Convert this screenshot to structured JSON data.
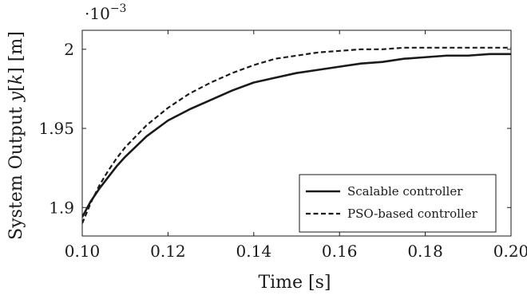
{
  "chart_data": {
    "type": "line",
    "xlabel": "Time [s]",
    "ylabel": "System Output y[k] [m]",
    "ylabel_parts": {
      "prefix": "System Output ",
      "var": "y",
      "arg": "k",
      "unit": " [m]"
    },
    "y_scale_factor": "·10",
    "y_scale_exponent": "−3",
    "xlim": [
      0.1,
      0.2
    ],
    "ylim": [
      1.882,
      2.012
    ],
    "x_ticks": [
      0.1,
      0.12,
      0.14,
      0.16,
      0.18,
      0.2
    ],
    "x_tick_labels": [
      "0.10",
      "0.12",
      "0.14",
      "0.16",
      "0.18",
      "0.20"
    ],
    "y_ticks": [
      1.9,
      1.95,
      2.0
    ],
    "y_tick_labels": [
      "1.9",
      "1.95",
      "2"
    ],
    "grid": false,
    "legend_position": "bottom-right",
    "series": [
      {
        "name": "Scalable controller",
        "style": "solid",
        "color": "#1a1a1a",
        "x": [
          0.1,
          0.102,
          0.104,
          0.106,
          0.108,
          0.11,
          0.115,
          0.12,
          0.125,
          0.13,
          0.135,
          0.14,
          0.145,
          0.15,
          0.155,
          0.16,
          0.165,
          0.17,
          0.175,
          0.18,
          0.185,
          0.19,
          0.195,
          0.2
        ],
        "y": [
          1.894,
          1.904,
          1.912,
          1.919,
          1.926,
          1.932,
          1.945,
          1.955,
          1.962,
          1.968,
          1.974,
          1.979,
          1.982,
          1.985,
          1.987,
          1.989,
          1.991,
          1.992,
          1.994,
          1.995,
          1.996,
          1.996,
          1.997,
          1.997
        ]
      },
      {
        "name": "PSO-based controller",
        "style": "dashed",
        "color": "#1a1a1a",
        "x": [
          0.1,
          0.102,
          0.104,
          0.106,
          0.108,
          0.11,
          0.115,
          0.12,
          0.125,
          0.13,
          0.135,
          0.14,
          0.145,
          0.15,
          0.155,
          0.16,
          0.165,
          0.17,
          0.175,
          0.18,
          0.185,
          0.19,
          0.195,
          0.2
        ],
        "y": [
          1.89,
          1.903,
          1.914,
          1.923,
          1.931,
          1.938,
          1.952,
          1.963,
          1.972,
          1.979,
          1.985,
          1.99,
          1.994,
          1.996,
          1.998,
          1.999,
          2.0,
          2.0,
          2.001,
          2.001,
          2.001,
          2.001,
          2.001,
          2.001
        ]
      }
    ]
  }
}
